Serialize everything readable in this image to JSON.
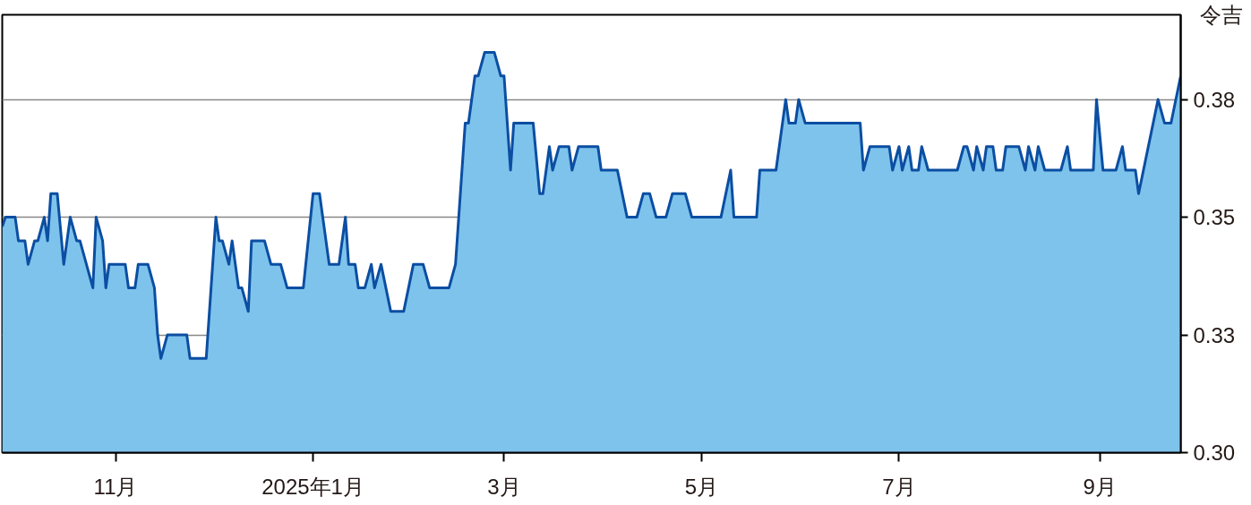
{
  "chart_data": {
    "type": "area",
    "ylabel": "令吉",
    "x": [
      "2024-09-27",
      "2024-09-28",
      "2024-10-01",
      "2024-10-02",
      "2024-10-04",
      "2024-10-05",
      "2024-10-07",
      "2024-10-08",
      "2024-10-10",
      "2024-10-11",
      "2024-10-12",
      "2024-10-14",
      "2024-10-16",
      "2024-10-18",
      "2024-10-20",
      "2024-10-21",
      "2024-10-25",
      "2024-10-26",
      "2024-10-28",
      "2024-10-29",
      "2024-10-30",
      "2024-11-04",
      "2024-11-05",
      "2024-11-07",
      "2024-11-08",
      "2024-11-11",
      "2024-11-13",
      "2024-11-14",
      "2024-11-15",
      "2024-11-17",
      "2024-11-23",
      "2024-11-24",
      "2024-11-29",
      "2024-12-02",
      "2024-12-03",
      "2024-12-04",
      "2024-12-06",
      "2024-12-07",
      "2024-12-09",
      "2024-12-10",
      "2024-12-12",
      "2024-12-13",
      "2024-12-17",
      "2024-12-19",
      "2024-12-22",
      "2024-12-24",
      "2024-12-29",
      "2025-01-01",
      "2025-01-03",
      "2025-01-05",
      "2025-01-06",
      "2025-01-09",
      "2025-01-11",
      "2025-01-12",
      "2025-01-14",
      "2025-01-15",
      "2025-01-17",
      "2025-01-19",
      "2025-01-20",
      "2025-01-22",
      "2025-01-25",
      "2025-01-29",
      "2025-02-01",
      "2025-02-04",
      "2025-02-06",
      "2025-02-12",
      "2025-02-14",
      "2025-02-17",
      "2025-02-18",
      "2025-02-20",
      "2025-02-21",
      "2025-02-23",
      "2025-02-26",
      "2025-02-28",
      "2025-03-01",
      "2025-03-03",
      "2025-03-04",
      "2025-03-10",
      "2025-03-12",
      "2025-03-13",
      "2025-03-15",
      "2025-03-16",
      "2025-03-18",
      "2025-03-21",
      "2025-03-22",
      "2025-03-24",
      "2025-03-30",
      "2025-03-31",
      "2025-04-05",
      "2025-04-08",
      "2025-04-11",
      "2025-04-13",
      "2025-04-15",
      "2025-04-17",
      "2025-04-20",
      "2025-04-22",
      "2025-04-26",
      "2025-04-28",
      "2025-05-07",
      "2025-05-10",
      "2025-05-11",
      "2025-05-18",
      "2025-05-19",
      "2025-05-24",
      "2025-05-27",
      "2025-05-28",
      "2025-05-30",
      "2025-05-31",
      "2025-06-02",
      "2025-06-19",
      "2025-06-20",
      "2025-06-22",
      "2025-06-28",
      "2025-06-29",
      "2025-07-01",
      "2025-07-02",
      "2025-07-04",
      "2025-07-05",
      "2025-07-07",
      "2025-07-08",
      "2025-07-10",
      "2025-07-19",
      "2025-07-21",
      "2025-07-22",
      "2025-07-24",
      "2025-07-25",
      "2025-07-27",
      "2025-07-28",
      "2025-07-30",
      "2025-07-31",
      "2025-08-02",
      "2025-08-03",
      "2025-08-07",
      "2025-08-09",
      "2025-08-10",
      "2025-08-12",
      "2025-08-13",
      "2025-08-15",
      "2025-08-20",
      "2025-08-22",
      "2025-08-23",
      "2025-08-30",
      "2025-08-31",
      "2025-09-02",
      "2025-09-06",
      "2025-09-08",
      "2025-09-09",
      "2025-09-12",
      "2025-09-13",
      "2025-09-19",
      "2025-09-21",
      "2025-09-23",
      "2025-09-26"
    ],
    "values": [
      0.348,
      0.35,
      0.35,
      0.345,
      0.345,
      0.34,
      0.345,
      0.345,
      0.35,
      0.345,
      0.355,
      0.355,
      0.34,
      0.35,
      0.345,
      0.345,
      0.335,
      0.35,
      0.345,
      0.335,
      0.34,
      0.34,
      0.335,
      0.335,
      0.34,
      0.34,
      0.335,
      0.325,
      0.32,
      0.325,
      0.325,
      0.32,
      0.32,
      0.35,
      0.345,
      0.345,
      0.34,
      0.345,
      0.335,
      0.335,
      0.33,
      0.345,
      0.345,
      0.34,
      0.34,
      0.335,
      0.335,
      0.355,
      0.355,
      0.345,
      0.34,
      0.34,
      0.35,
      0.34,
      0.34,
      0.335,
      0.335,
      0.34,
      0.335,
      0.34,
      0.33,
      0.33,
      0.34,
      0.34,
      0.335,
      0.335,
      0.34,
      0.37,
      0.37,
      0.38,
      0.38,
      0.385,
      0.385,
      0.38,
      0.38,
      0.36,
      0.37,
      0.37,
      0.355,
      0.355,
      0.365,
      0.36,
      0.365,
      0.365,
      0.36,
      0.365,
      0.365,
      0.36,
      0.36,
      0.35,
      0.35,
      0.355,
      0.355,
      0.35,
      0.35,
      0.355,
      0.355,
      0.35,
      0.35,
      0.36,
      0.35,
      0.35,
      0.36,
      0.36,
      0.375,
      0.37,
      0.37,
      0.375,
      0.37,
      0.37,
      0.36,
      0.365,
      0.365,
      0.36,
      0.365,
      0.36,
      0.365,
      0.36,
      0.36,
      0.365,
      0.36,
      0.36,
      0.365,
      0.365,
      0.36,
      0.365,
      0.36,
      0.365,
      0.365,
      0.36,
      0.36,
      0.365,
      0.365,
      0.36,
      0.365,
      0.36,
      0.365,
      0.36,
      0.36,
      0.365,
      0.36,
      0.36,
      0.375,
      0.36,
      0.36,
      0.365,
      0.36,
      0.36,
      0.355,
      0.375,
      0.37,
      0.37,
      0.38
    ],
    "color": "#0b4ea2",
    "xlim": [
      "2024-09-27",
      "2025-09-26"
    ],
    "xticks": [
      {
        "value": "2024-11-01",
        "label": "11月"
      },
      {
        "value": "2025-01-01",
        "label": "2025年1月"
      },
      {
        "value": "2025-03-01",
        "label": "3月"
      },
      {
        "value": "2025-05-01",
        "label": "5月"
      },
      {
        "value": "2025-07-01",
        "label": "7月"
      },
      {
        "value": "2025-09-01",
        "label": "9月"
      }
    ],
    "ylim": [
      0.3,
      0.393
    ],
    "yticks": [
      {
        "value": 0.3,
        "label": "0.30"
      },
      {
        "value": 0.325,
        "label": "0.33"
      },
      {
        "value": 0.35,
        "label": "0.35"
      },
      {
        "value": 0.375,
        "label": "0.38"
      }
    ],
    "grid": "y",
    "line_style": "solid"
  }
}
